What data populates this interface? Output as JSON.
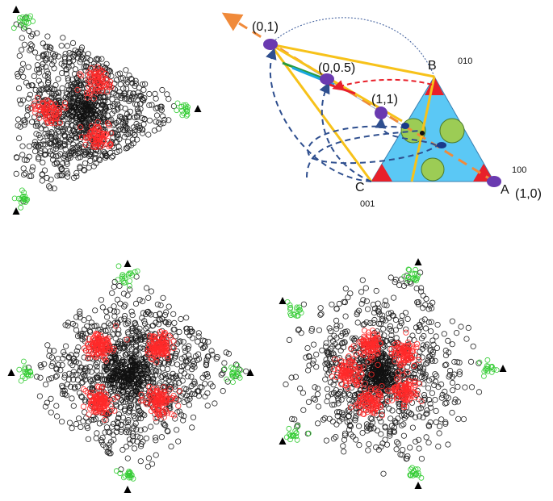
{
  "diagram": {
    "points": {
      "p01": "(0,1)",
      "p005": "(0,0.5)",
      "p11": "(1,1)",
      "p10": "(1,0)"
    },
    "vertices": {
      "B": "B",
      "A": "A",
      "C": "C",
      "codeB": "010",
      "codeA": "100",
      "codeC": "001"
    },
    "colors": {
      "triangle_fill": "#5bc8f5",
      "corner_red": "#e8202a",
      "circle_green": "#9ccc55",
      "axis_orange": "#f08a3a",
      "point_purple": "#6a3ab0",
      "dashed_blue": "#2f4f8f"
    }
  },
  "scatter_panels": [
    {
      "shape": "triangle",
      "cloud_color": "#222222",
      "cluster_red": "#ff2a2a",
      "cluster_green": "#33cc33"
    },
    {
      "shape": "square",
      "cloud_color": "#222222",
      "cluster_red": "#ff2a2a",
      "cluster_green": "#33cc33"
    },
    {
      "shape": "pentagon",
      "cloud_color": "#222222",
      "cluster_red": "#ff2a2a",
      "cluster_green": "#33cc33"
    }
  ]
}
